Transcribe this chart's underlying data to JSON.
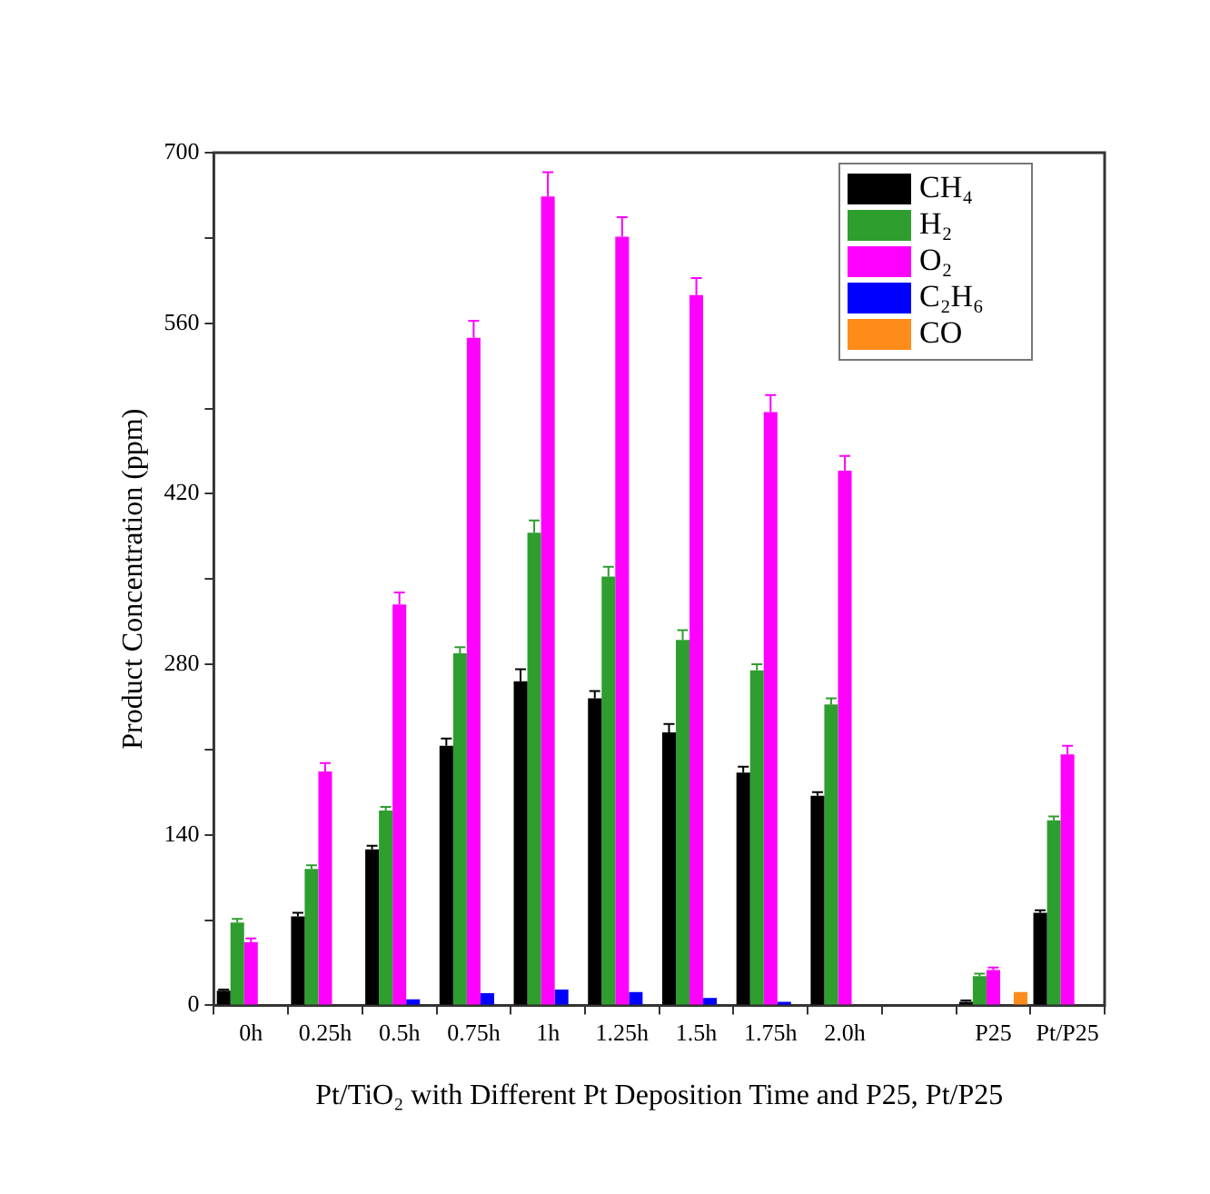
{
  "chart_data": {
    "type": "bar",
    "xlabel": "Pt/TiO₂ with Different Pt Deposition Time and P25, Pt/P25",
    "ylabel": "Product Concentration (ppm)",
    "categories": [
      "0h",
      "0.25h",
      "0.5h",
      "0.75h",
      "1h",
      "1.25h",
      "1.5h",
      "1.75h",
      "2.0h",
      null,
      "P25",
      "Pt/P25"
    ],
    "series": [
      {
        "name": "CH₄",
        "color": "#000000",
        "values": [
          12,
          73,
          128,
          213,
          266,
          252,
          224,
          191,
          172,
          null,
          3,
          76
        ],
        "errors": [
          1,
          3,
          3,
          6,
          10,
          6,
          7,
          5,
          3,
          null,
          1,
          2
        ]
      },
      {
        "name": "H₂",
        "color": "#2e9e2e",
        "values": [
          68,
          112,
          160,
          289,
          388,
          352,
          300,
          275,
          247,
          null,
          24,
          152
        ],
        "errors": [
          3,
          3,
          3,
          5,
          10,
          8,
          8,
          5,
          5,
          null,
          2,
          3
        ]
      },
      {
        "name": "O₂",
        "color": "#ff00ff",
        "values": [
          52,
          192,
          329,
          548,
          664,
          631,
          583,
          487,
          439,
          null,
          29,
          206
        ],
        "errors": [
          3,
          7,
          10,
          14,
          20,
          16,
          14,
          14,
          12,
          null,
          2,
          7
        ]
      },
      {
        "name": "C₂H₆",
        "color": "#0000ff",
        "values": [
          null,
          null,
          5,
          10,
          13,
          11,
          6,
          3,
          null,
          null,
          null,
          null
        ]
      },
      {
        "name": "CO",
        "color": "#ff8c1a",
        "values": [
          null,
          null,
          null,
          null,
          null,
          null,
          null,
          null,
          null,
          null,
          11,
          null
        ]
      }
    ],
    "ylim": [
      0,
      700
    ],
    "yticks": [
      0,
      {
        "value": 70,
        "label": null
      },
      140,
      {
        "value": 210,
        "label": null
      },
      280,
      {
        "value": 350,
        "label": null
      },
      420,
      {
        "value": 490,
        "label": null
      },
      560,
      {
        "value": 630,
        "label": null
      },
      700
    ],
    "grid": false,
    "legend": "top right"
  }
}
